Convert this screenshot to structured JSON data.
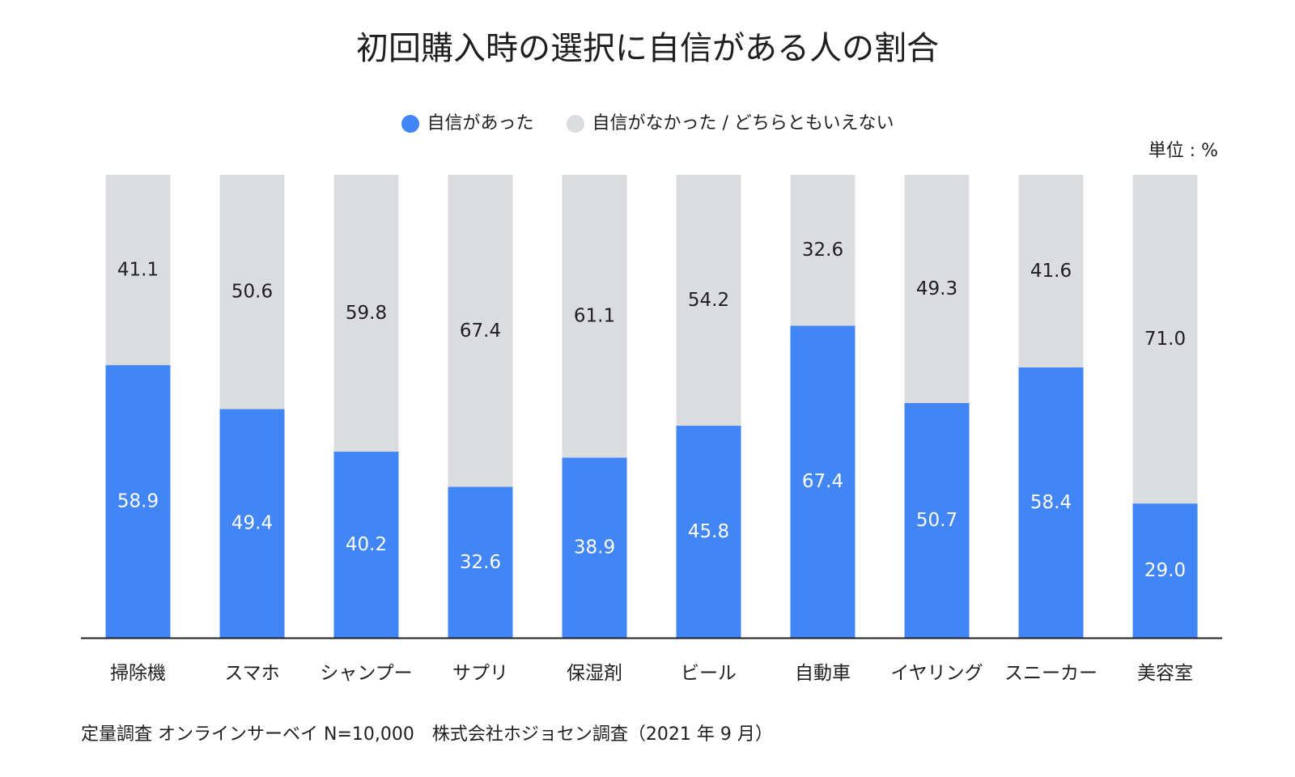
{
  "chart_data": {
    "type": "bar",
    "stacked": true,
    "title": "初回購入時の選択に自信がある人の割合",
    "unit_label": "単位 : %",
    "categories": [
      "掃除機",
      "スマホ",
      "シャンプー",
      "サプリ",
      "保湿剤",
      "ビール",
      "自動車",
      "イヤリング",
      "スニーカー",
      "美容室"
    ],
    "series": [
      {
        "name": "自信があった",
        "color": "#4285f4",
        "label_color": "#ffffff",
        "values": [
          58.9,
          49.4,
          40.2,
          32.6,
          38.9,
          45.8,
          67.4,
          50.7,
          58.4,
          29.0
        ]
      },
      {
        "name": "自信がなかった / どちらともいえない",
        "color": "#dadce0",
        "label_color": "#1f1f1f",
        "values": [
          41.1,
          50.6,
          59.8,
          67.4,
          61.1,
          54.2,
          32.6,
          49.3,
          41.6,
          71.0
        ]
      }
    ],
    "ylim": [
      0,
      100
    ],
    "grid": false,
    "legend_position": "top-center",
    "footnote": "定量調査 オンラインサーベイ N=10,000　株式会社ホジョセン調査（2021 年 9 月）"
  }
}
